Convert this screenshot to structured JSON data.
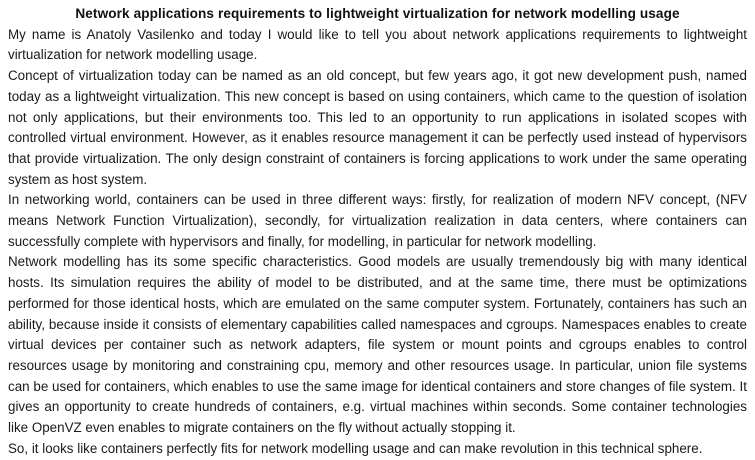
{
  "document": {
    "title": "Network applications requirements to lightweight virtualization for network modelling usage",
    "paragraphs": [
      "My name is Anatoly Vasilenko and today I would like to tell you about network applications requirements to lightweight virtualization for network modelling usage.",
      "Concept of virtualization today can be named as an old concept, but few years ago, it got new development push, named today as a lightweight virtualization. This new concept is based on using containers, which came to the question of isolation not only applications, but their environments too. This led to an opportunity to run applications in isolated scopes with controlled virtual environment. However, as it enables resource management it can be perfectly used instead of hypervisors that provide virtualization. The only design constraint of containers is forcing applications to work under the same operating system as host system.",
      "In networking world, containers can be used in three different ways: firstly, for realization of modern NFV concept, (NFV means Network Function Virtualization), secondly, for virtualization realization in data centers, where containers can successfully complete with hypervisors and finally, for modelling, in particular for network modelling.",
      "Network modelling has its some specific characteristics. Good models are usually tremendously big with many identical hosts. Its simulation requires the ability of model to be distributed, and at the same time, there must be optimizations performed for those identical hosts, which are emulated on the same computer system. Fortunately, containers has such an ability, because inside it consists of elementary capabilities called namespaces and cgroups. Namespaces enables to create virtual devices per container such as network adapters, file system or mount points and cgroups enables to control resources usage by monitoring and constraining cpu, memory and other resources usage. In particular, union file systems can be used for containers, which enables to use the same image for identical containers and store changes of file system. It gives an opportunity to create hundreds of containers, e.g. virtual machines within seconds. Some container technologies like OpenVZ even enables to migrate containers on the fly without actually stopping it.",
      "So, it looks like containers perfectly fits for network modelling usage and can make revolution in this technical sphere."
    ],
    "colors": {
      "background": "#ffffff",
      "text": "#1a1a1a",
      "title_text": "#111111"
    }
  }
}
